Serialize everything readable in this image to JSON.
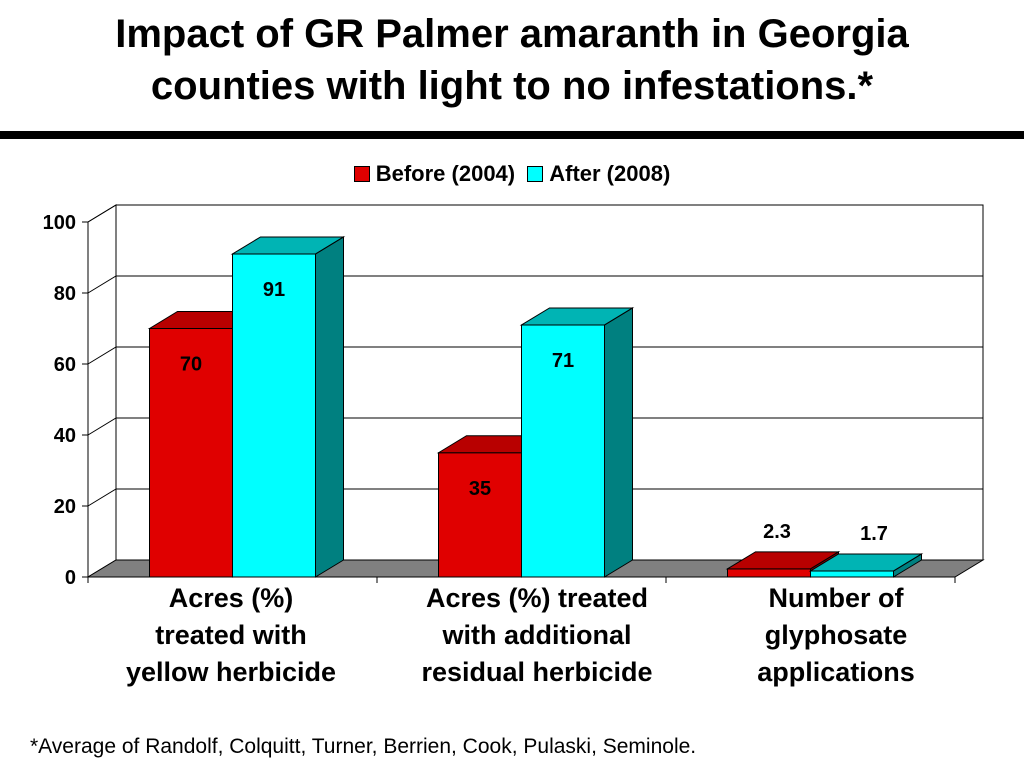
{
  "slide": {
    "title_line1": "Impact of GR Palmer amaranth in Georgia",
    "title_line2": "counties with light to no infestations.*",
    "footnote": "*Average of Randolf, Colquitt, Turner, Berrien, Cook, Pulaski, Seminole."
  },
  "chart_data": {
    "type": "bar",
    "style": "3d-clustered",
    "title": "",
    "xlabel": "",
    "ylabel": "",
    "ylim": [
      0,
      100
    ],
    "yticks": [
      0,
      20,
      40,
      60,
      80,
      100
    ],
    "grid": true,
    "legend_position": "top",
    "categories": [
      [
        "Acres (%)",
        "treated with",
        "yellow herbicide"
      ],
      [
        "Acres (%) treated",
        "with additional",
        "residual herbicide"
      ],
      [
        "Number of",
        "glyphosate",
        "applications"
      ]
    ],
    "series": [
      {
        "name": "Before (2004)",
        "color": "#e00000",
        "top_color": "#b80000",
        "side_color": "#8a0000",
        "values": [
          70,
          35,
          2.3
        ],
        "labels": [
          "70",
          "35",
          "2.3"
        ]
      },
      {
        "name": "After (2008)",
        "color": "#00ffff",
        "top_color": "#00b4b4",
        "side_color": "#008080",
        "values": [
          91,
          71,
          1.7
        ],
        "labels": [
          "91",
          "71",
          "1.7"
        ]
      }
    ],
    "colors": {
      "floor": "#808080",
      "grid": "#000000",
      "wall": "#ffffff"
    }
  }
}
